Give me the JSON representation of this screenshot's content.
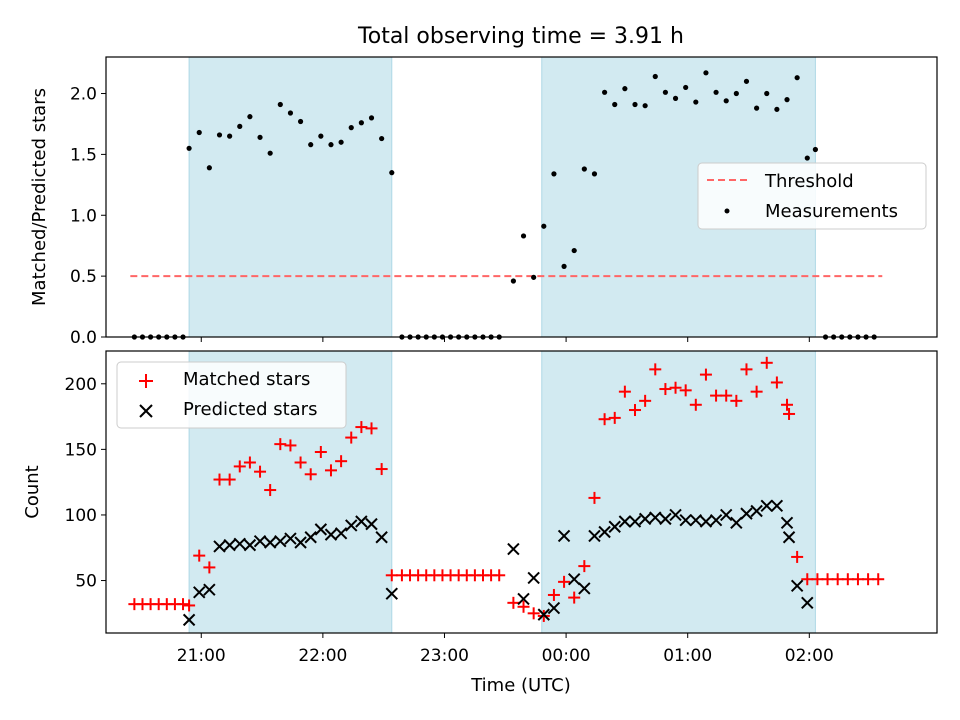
{
  "figure": {
    "title": "Total observing time = 3.91 h"
  },
  "colors": {
    "shade": "#add8e6",
    "threshold": "#ff6666",
    "matched": "#ff0000",
    "predicted": "#000000",
    "measure": "#000000"
  },
  "chart_data": [
    {
      "type": "scatter",
      "panel": "top",
      "title": "Total observing time = 3.91 h",
      "xlabel": "",
      "ylabel": "Matched/Predicted stars",
      "xlim": [
        "20:13",
        "03:03"
      ],
      "ylim": [
        0,
        2.3
      ],
      "yticks": [
        "0.0",
        "0.5",
        "1.0",
        "1.5",
        "2.0"
      ],
      "ytick_values": [
        0,
        0.5,
        1.0,
        1.5,
        2.0
      ],
      "shaded_intervals": [
        [
          "20:54",
          "22:34"
        ],
        [
          "23:48",
          "02:03"
        ]
      ],
      "legend": {
        "position": "center-right",
        "entries": [
          "Threshold",
          "Measurements"
        ]
      },
      "threshold": {
        "name": "Threshold",
        "value": 0.5,
        "x_range": [
          "20:25",
          "02:36"
        ]
      },
      "series": [
        {
          "name": "Measurements",
          "points": [
            [
              "20:27",
              0
            ],
            [
              "20:31",
              0
            ],
            [
              "20:35",
              0
            ],
            [
              "20:39",
              0
            ],
            [
              "20:43",
              0
            ],
            [
              "20:47",
              0
            ],
            [
              "20:51",
              0
            ],
            [
              "20:54",
              1.55
            ],
            [
              "20:59",
              1.68
            ],
            [
              "21:04",
              1.39
            ],
            [
              "21:09",
              1.66
            ],
            [
              "21:14",
              1.65
            ],
            [
              "21:19",
              1.73
            ],
            [
              "21:24",
              1.81
            ],
            [
              "21:29",
              1.64
            ],
            [
              "21:34",
              1.51
            ],
            [
              "21:39",
              1.91
            ],
            [
              "21:44",
              1.84
            ],
            [
              "21:49",
              1.77
            ],
            [
              "21:54",
              1.58
            ],
            [
              "21:59",
              1.65
            ],
            [
              "22:04",
              1.58
            ],
            [
              "22:09",
              1.6
            ],
            [
              "22:14",
              1.72
            ],
            [
              "22:19",
              1.76
            ],
            [
              "22:24",
              1.8
            ],
            [
              "22:29",
              1.63
            ],
            [
              "22:34",
              1.35
            ],
            [
              "22:39",
              0
            ],
            [
              "22:43",
              0
            ],
            [
              "22:47",
              0
            ],
            [
              "22:51",
              0
            ],
            [
              "22:55",
              0
            ],
            [
              "22:59",
              0
            ],
            [
              "23:03",
              0
            ],
            [
              "23:07",
              0
            ],
            [
              "23:11",
              0
            ],
            [
              "23:15",
              0
            ],
            [
              "23:19",
              0
            ],
            [
              "23:23",
              0
            ],
            [
              "23:27",
              0
            ],
            [
              "23:34",
              0.46
            ],
            [
              "23:39",
              0.83
            ],
            [
              "23:44",
              0.49
            ],
            [
              "23:49",
              0.91
            ],
            [
              "23:54",
              1.34
            ],
            [
              "23:59",
              0.58
            ],
            [
              "00:04",
              0.71
            ],
            [
              "00:09",
              1.38
            ],
            [
              "00:14",
              1.34
            ],
            [
              "00:19",
              2.01
            ],
            [
              "00:24",
              1.91
            ],
            [
              "00:29",
              2.04
            ],
            [
              "00:34",
              1.91
            ],
            [
              "00:39",
              1.9
            ],
            [
              "00:44",
              2.14
            ],
            [
              "00:49",
              2.01
            ],
            [
              "00:54",
              1.96
            ],
            [
              "00:59",
              2.05
            ],
            [
              "01:04",
              1.93
            ],
            [
              "01:09",
              2.17
            ],
            [
              "01:14",
              2.01
            ],
            [
              "01:19",
              1.94
            ],
            [
              "01:24",
              2.0
            ],
            [
              "01:29",
              2.1
            ],
            [
              "01:34",
              1.88
            ],
            [
              "01:39",
              2.0
            ],
            [
              "01:44",
              1.87
            ],
            [
              "01:49",
              1.95
            ],
            [
              "01:54",
              2.13
            ],
            [
              "01:59",
              1.47
            ],
            [
              "02:03",
              1.54
            ],
            [
              "02:08",
              0
            ],
            [
              "02:12",
              0
            ],
            [
              "02:16",
              0
            ],
            [
              "02:20",
              0
            ],
            [
              "02:24",
              0
            ],
            [
              "02:28",
              0
            ],
            [
              "02:32",
              0
            ]
          ]
        }
      ]
    },
    {
      "type": "scatter",
      "panel": "bottom",
      "xlabel": "Time (UTC)",
      "ylabel": "Count",
      "xlim": [
        "20:13",
        "03:03"
      ],
      "ylim": [
        10,
        225
      ],
      "xticks": [
        "21:00",
        "22:00",
        "23:00",
        "00:00",
        "01:00",
        "02:00"
      ],
      "yticks": [
        "50",
        "100",
        "150",
        "200"
      ],
      "ytick_values": [
        50,
        100,
        150,
        200
      ],
      "shaded_intervals": [
        [
          "20:54",
          "22:34"
        ],
        [
          "23:48",
          "02:03"
        ]
      ],
      "legend": {
        "position": "upper-left",
        "entries": [
          "Matched stars",
          "Predicted stars"
        ]
      },
      "series": [
        {
          "name": "Matched stars",
          "marker": "+",
          "points": [
            [
              "20:27",
              32
            ],
            [
              "20:31",
              32
            ],
            [
              "20:35",
              32
            ],
            [
              "20:39",
              32
            ],
            [
              "20:43",
              32
            ],
            [
              "20:47",
              32
            ],
            [
              "20:51",
              32
            ],
            [
              "20:54",
              31
            ],
            [
              "20:59",
              69
            ],
            [
              "21:04",
              60
            ],
            [
              "21:09",
              127
            ],
            [
              "21:14",
              127
            ],
            [
              "21:19",
              137
            ],
            [
              "21:24",
              140
            ],
            [
              "21:29",
              133
            ],
            [
              "21:34",
              119
            ],
            [
              "21:39",
              154
            ],
            [
              "21:44",
              153
            ],
            [
              "21:49",
              140
            ],
            [
              "21:54",
              131
            ],
            [
              "21:59",
              148
            ],
            [
              "22:04",
              134
            ],
            [
              "22:09",
              141
            ],
            [
              "22:14",
              159
            ],
            [
              "22:19",
              167
            ],
            [
              "22:24",
              166
            ],
            [
              "22:29",
              135
            ],
            [
              "22:34",
              54
            ],
            [
              "22:39",
              54
            ],
            [
              "22:43",
              54
            ],
            [
              "22:47",
              54
            ],
            [
              "22:51",
              54
            ],
            [
              "22:55",
              54
            ],
            [
              "22:59",
              54
            ],
            [
              "23:03",
              54
            ],
            [
              "23:07",
              54
            ],
            [
              "23:11",
              54
            ],
            [
              "23:15",
              54
            ],
            [
              "23:19",
              54
            ],
            [
              "23:23",
              54
            ],
            [
              "23:27",
              54
            ],
            [
              "23:34",
              33
            ],
            [
              "23:39",
              30
            ],
            [
              "23:44",
              25
            ],
            [
              "23:49",
              23
            ],
            [
              "23:54",
              39
            ],
            [
              "23:59",
              49
            ],
            [
              "00:04",
              37
            ],
            [
              "00:09",
              61
            ],
            [
              "00:14",
              113
            ],
            [
              "00:19",
              173
            ],
            [
              "00:24",
              174
            ],
            [
              "00:29",
              194
            ],
            [
              "00:34",
              180
            ],
            [
              "00:39",
              187
            ],
            [
              "00:44",
              211
            ],
            [
              "00:49",
              196
            ],
            [
              "00:54",
              197
            ],
            [
              "00:59",
              195
            ],
            [
              "01:04",
              184
            ],
            [
              "01:09",
              207
            ],
            [
              "01:14",
              191
            ],
            [
              "01:19",
              191
            ],
            [
              "01:24",
              187
            ],
            [
              "01:29",
              211
            ],
            [
              "01:34",
              194
            ],
            [
              "01:39",
              216
            ],
            [
              "01:44",
              201
            ],
            [
              "01:49",
              184
            ],
            [
              "01:50",
              177
            ],
            [
              "01:54",
              68
            ],
            [
              "01:59",
              51
            ],
            [
              "02:04",
              51
            ],
            [
              "02:09",
              51
            ],
            [
              "02:14",
              51
            ],
            [
              "02:19",
              51
            ],
            [
              "02:24",
              51
            ],
            [
              "02:29",
              51
            ],
            [
              "02:34",
              51
            ]
          ]
        },
        {
          "name": "Predicted stars",
          "marker": "x",
          "points": [
            [
              "20:54",
              20
            ],
            [
              "20:59",
              41
            ],
            [
              "21:04",
              43
            ],
            [
              "21:09",
              76
            ],
            [
              "21:14",
              77
            ],
            [
              "21:19",
              78
            ],
            [
              "21:24",
              77
            ],
            [
              "21:29",
              80
            ],
            [
              "21:34",
              79
            ],
            [
              "21:39",
              80
            ],
            [
              "21:44",
              82
            ],
            [
              "21:49",
              79
            ],
            [
              "21:54",
              83
            ],
            [
              "21:59",
              89
            ],
            [
              "22:04",
              85
            ],
            [
              "22:09",
              86
            ],
            [
              "22:14",
              92
            ],
            [
              "22:19",
              95
            ],
            [
              "22:24",
              93
            ],
            [
              "22:29",
              83
            ],
            [
              "22:34",
              40
            ],
            [
              "23:34",
              74
            ],
            [
              "23:39",
              36
            ],
            [
              "23:44",
              52
            ],
            [
              "23:49",
              24
            ],
            [
              "23:54",
              29
            ],
            [
              "23:59",
              84
            ],
            [
              "00:04",
              51
            ],
            [
              "00:09",
              44
            ],
            [
              "00:14",
              84
            ],
            [
              "00:19",
              87
            ],
            [
              "00:24",
              91
            ],
            [
              "00:29",
              95
            ],
            [
              "00:34",
              95
            ],
            [
              "00:39",
              97
            ],
            [
              "00:44",
              98
            ],
            [
              "00:49",
              97
            ],
            [
              "00:54",
              100
            ],
            [
              "00:59",
              96
            ],
            [
              "01:04",
              96
            ],
            [
              "01:09",
              95
            ],
            [
              "01:14",
              96
            ],
            [
              "01:19",
              100
            ],
            [
              "01:24",
              94
            ],
            [
              "01:29",
              101
            ],
            [
              "01:34",
              103
            ],
            [
              "01:39",
              107
            ],
            [
              "01:44",
              107
            ],
            [
              "01:49",
              94
            ],
            [
              "01:50",
              83
            ],
            [
              "01:54",
              46
            ],
            [
              "01:59",
              33
            ]
          ]
        }
      ]
    }
  ]
}
